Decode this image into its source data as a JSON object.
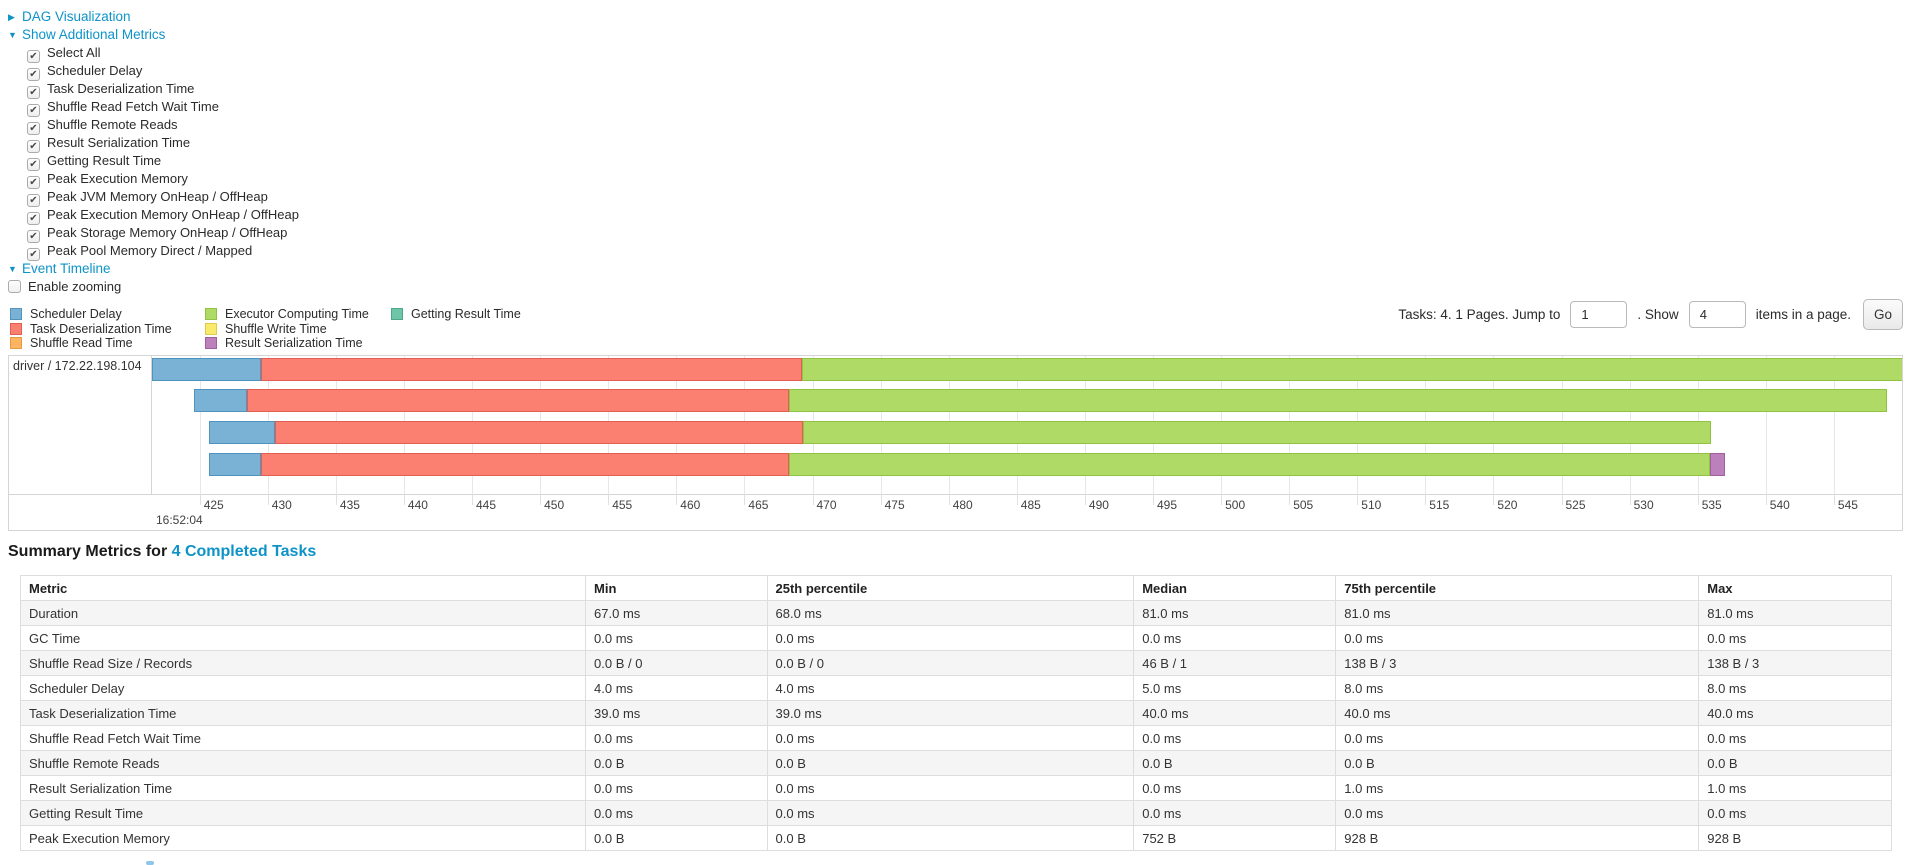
{
  "colors": {
    "link": "#0d93c8",
    "grid": "#e7e7e7",
    "chart_border": "#d5d5d5"
  },
  "controls": {
    "dag_label": "DAG Visualization",
    "metrics_label": "Show Additional Metrics",
    "timeline_label": "Event Timeline",
    "enable_zooming_label": "Enable zooming"
  },
  "metrics_checkboxes": {
    "items": [
      "Select All",
      "Scheduler Delay",
      "Task Deserialization Time",
      "Shuffle Read Fetch Wait Time",
      "Shuffle Remote Reads",
      "Result Serialization Time",
      "Getting Result Time",
      "Peak Execution Memory",
      "Peak JVM Memory OnHeap / OffHeap",
      "Peak Execution Memory OnHeap / OffHeap",
      "Peak Storage Memory OnHeap / OffHeap",
      "Peak Pool Memory Direct / Mapped"
    ]
  },
  "pagination": {
    "prefix": "Tasks: 4. 1 Pages. Jump to",
    "jump_value": "1",
    "mid": ". Show",
    "show_value": "4",
    "suffix": "items in a page.",
    "go_label": "Go"
  },
  "chart_data": {
    "type": "timeline",
    "title": "Event Timeline",
    "group_label": "driver / 172.22.198.104",
    "x_axis": {
      "window": [
        421.5,
        550.0
      ],
      "tick_start": 425,
      "tick_step": 5,
      "tick_end": 550,
      "start_time_label": "16:52:04"
    },
    "colors": {
      "scheduler_delay": {
        "fill": "#79B2D4",
        "stroke": "#4E94BE"
      },
      "task_deserialization": {
        "fill": "#FB8072",
        "stroke": "#E05F52"
      },
      "shuffle_read": {
        "fill": "#FDB462",
        "stroke": "#E39A43"
      },
      "executor_computing": {
        "fill": "#AFDA66",
        "stroke": "#91C342"
      },
      "shuffle_write": {
        "fill": "#F9EA6B",
        "stroke": "#DCCB4E"
      },
      "result_serialization": {
        "fill": "#BC80BD",
        "stroke": "#A05FA1"
      },
      "getting_result": {
        "fill": "#6EC5A8",
        "stroke": "#4BA98A"
      }
    },
    "legend_columns": [
      [
        {
          "label": "Scheduler Delay",
          "key": "scheduler_delay"
        },
        {
          "label": "Task Deserialization Time",
          "key": "task_deserialization"
        },
        {
          "label": "Shuffle Read Time",
          "key": "shuffle_read"
        }
      ],
      [
        {
          "label": "Executor Computing Time",
          "key": "executor_computing"
        },
        {
          "label": "Shuffle Write Time",
          "key": "shuffle_write"
        },
        {
          "label": "Result Serialization Time",
          "key": "result_serialization"
        }
      ],
      [
        {
          "label": "Getting Result Time",
          "key": "getting_result"
        }
      ]
    ],
    "tasks": [
      {
        "segments": [
          {
            "kind": "scheduler_delay",
            "start": 421.5,
            "end": 429.5
          },
          {
            "kind": "task_deserialization",
            "start": 429.5,
            "end": 469.2
          },
          {
            "kind": "executor_computing",
            "start": 469.2,
            "end": 550.6
          }
        ]
      },
      {
        "segments": [
          {
            "kind": "scheduler_delay",
            "start": 424.6,
            "end": 428.5
          },
          {
            "kind": "task_deserialization",
            "start": 428.5,
            "end": 468.3
          },
          {
            "kind": "executor_computing",
            "start": 468.3,
            "end": 548.9
          }
        ]
      },
      {
        "segments": [
          {
            "kind": "scheduler_delay",
            "start": 425.7,
            "end": 430.5
          },
          {
            "kind": "task_deserialization",
            "start": 430.5,
            "end": 469.3
          },
          {
            "kind": "executor_computing",
            "start": 469.3,
            "end": 536.0
          }
        ]
      },
      {
        "segments": [
          {
            "kind": "scheduler_delay",
            "start": 425.7,
            "end": 429.5
          },
          {
            "kind": "task_deserialization",
            "start": 429.5,
            "end": 468.3
          },
          {
            "kind": "executor_computing",
            "start": 468.3,
            "end": 535.9
          },
          {
            "kind": "result_serialization",
            "start": 535.9,
            "end": 537.0
          }
        ]
      }
    ]
  },
  "summary": {
    "heading_prefix": "Summary Metrics for ",
    "heading_link": "4 Completed Tasks",
    "columns": [
      "Metric",
      "Min",
      "25th percentile",
      "Median",
      "75th percentile",
      "Max"
    ],
    "rows": [
      {
        "metric": "Duration",
        "values": [
          "67.0 ms",
          "68.0 ms",
          "81.0 ms",
          "81.0 ms",
          "81.0 ms"
        ]
      },
      {
        "metric": "GC Time",
        "values": [
          "0.0 ms",
          "0.0 ms",
          "0.0 ms",
          "0.0 ms",
          "0.0 ms"
        ]
      },
      {
        "metric": "Shuffle Read Size / Records",
        "values": [
          "0.0 B / 0",
          "0.0 B / 0",
          "46 B / 1",
          "138 B / 3",
          "138 B / 3"
        ]
      },
      {
        "metric": "Scheduler Delay",
        "values": [
          "4.0 ms",
          "4.0 ms",
          "5.0 ms",
          "8.0 ms",
          "8.0 ms"
        ]
      },
      {
        "metric": "Task Deserialization Time",
        "values": [
          "39.0 ms",
          "39.0 ms",
          "40.0 ms",
          "40.0 ms",
          "40.0 ms"
        ]
      },
      {
        "metric": "Shuffle Read Fetch Wait Time",
        "values": [
          "0.0 ms",
          "0.0 ms",
          "0.0 ms",
          "0.0 ms",
          "0.0 ms"
        ]
      },
      {
        "metric": "Shuffle Remote Reads",
        "values": [
          "0.0 B",
          "0.0 B",
          "0.0 B",
          "0.0 B",
          "0.0 B"
        ]
      },
      {
        "metric": "Result Serialization Time",
        "values": [
          "0.0 ms",
          "0.0 ms",
          "0.0 ms",
          "1.0 ms",
          "1.0 ms"
        ]
      },
      {
        "metric": "Getting Result Time",
        "values": [
          "0.0 ms",
          "0.0 ms",
          "0.0 ms",
          "0.0 ms",
          "0.0 ms"
        ]
      },
      {
        "metric": "Peak Execution Memory",
        "values": [
          "0.0 B",
          "0.0 B",
          "752 B",
          "928 B",
          "928 B"
        ]
      }
    ]
  }
}
